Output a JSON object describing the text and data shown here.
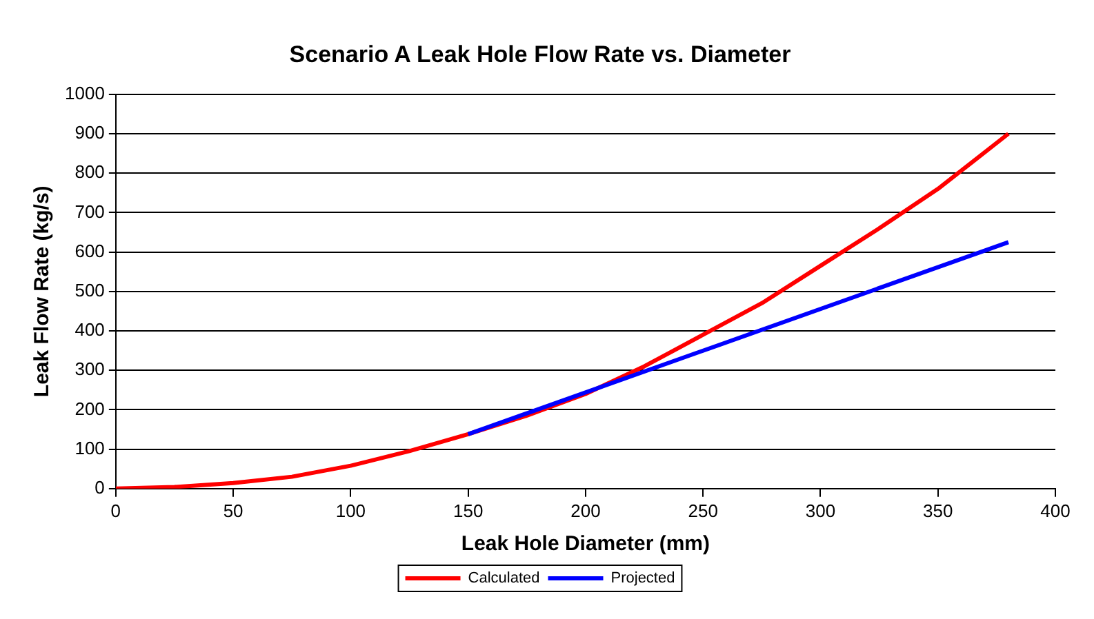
{
  "chart_data": {
    "type": "line",
    "title": "Scenario A Leak Hole Flow Rate vs. Diameter",
    "xlabel": "Leak Hole Diameter (mm)",
    "ylabel": "Leak Flow Rate (kg/s)",
    "xlim": [
      0,
      400
    ],
    "xticks": [
      0,
      50,
      100,
      150,
      200,
      250,
      300,
      350,
      400
    ],
    "ylim": [
      0,
      1000
    ],
    "yticks": [
      0,
      100,
      200,
      300,
      400,
      500,
      600,
      700,
      800,
      900,
      1000
    ],
    "grid": "y",
    "legend": "bottom",
    "marker": "none",
    "line_style": "solid",
    "series": [
      {
        "name": "Calculated",
        "color": "#ff0000",
        "x": [
          0,
          25,
          50,
          75,
          100,
          125,
          150,
          175,
          200,
          225,
          250,
          275,
          300,
          325,
          350,
          365,
          380
        ],
        "values": [
          0,
          4,
          14,
          30,
          58,
          95,
          138,
          185,
          240,
          310,
          390,
          470,
          565,
          660,
          760,
          830,
          900
        ]
      },
      {
        "name": "Projected",
        "color": "#0000ff",
        "x": [
          150,
          380
        ],
        "values": [
          138,
          625
        ]
      }
    ]
  }
}
